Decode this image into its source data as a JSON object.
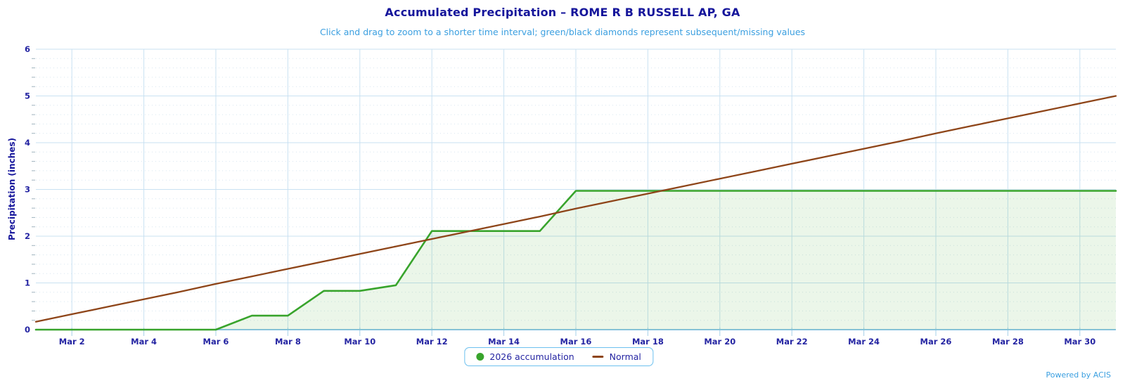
{
  "chart": {
    "title": "Accumulated Precipitation – ROME R B RUSSELL AP, GA",
    "subtitle": "Click and drag to zoom to a shorter time interval; green/black diamonds represent subsequent/missing values",
    "ylabel": "Precipitation (inches)",
    "credits": "Powered by ACIS"
  },
  "legend": {
    "items": [
      {
        "label": "2026 accumulation",
        "marker": "circle",
        "color": "#38a42c"
      },
      {
        "label": "Normal",
        "marker": "line",
        "color": "#8e4519"
      }
    ]
  },
  "colors": {
    "title": "#15159b",
    "subtitle": "#3b9fe0",
    "tick_label": "#2424a2",
    "grid_major": "#c9e1f2",
    "grid_minor": "#d7e6f0",
    "axis_line": "#8ac4e2",
    "x_tick": "#a5d0e8",
    "y_minor_tick": "#9fb2bd",
    "accumulation": "#38a42c",
    "accumulation_fill": "rgba(56,164,44,0.10)",
    "normal": "#8e4519",
    "legend_border": "#6cc0ef"
  },
  "chart_data": {
    "type": "area",
    "title": "Accumulated Precipitation – ROME R B RUSSELL AP, GA",
    "subtitle": "Click and drag to zoom to a shorter time interval; green/black diamonds represent subsequent/missing values",
    "xlabel": "",
    "ylabel": "Precipitation (inches)",
    "ylim": [
      0,
      6
    ],
    "y_major_step": 1,
    "y_minor_step": 0.2,
    "x_tick_every_days": 2,
    "grid": true,
    "legend_position": "bottom-center",
    "categories": [
      "Mar 1",
      "Mar 2",
      "Mar 3",
      "Mar 4",
      "Mar 5",
      "Mar 6",
      "Mar 7",
      "Mar 8",
      "Mar 9",
      "Mar 10",
      "Mar 11",
      "Mar 12",
      "Mar 13",
      "Mar 14",
      "Mar 15",
      "Mar 16",
      "Mar 17",
      "Mar 18",
      "Mar 19",
      "Mar 20",
      "Mar 21",
      "Mar 22",
      "Mar 23",
      "Mar 24",
      "Mar 25",
      "Mar 26",
      "Mar 27",
      "Mar 28",
      "Mar 29",
      "Mar 30",
      "Mar 31"
    ],
    "series": [
      {
        "name": "2026 accumulation",
        "type": "area",
        "color": "#38a42c",
        "values": [
          0,
          0,
          0,
          0,
          0,
          0,
          0.3,
          0.3,
          0.83,
          0.83,
          0.95,
          2.11,
          2.11,
          2.11,
          2.11,
          2.97,
          2.97,
          2.97,
          2.97,
          2.97,
          2.97,
          2.97,
          2.97,
          2.97,
          2.97,
          2.97,
          2.97,
          2.97,
          2.97,
          2.97,
          2.97
        ]
      },
      {
        "name": "Normal",
        "type": "line",
        "color": "#8e4519",
        "values": [
          0.17,
          0.33,
          0.49,
          0.65,
          0.81,
          0.98,
          1.14,
          1.3,
          1.46,
          1.62,
          1.78,
          1.94,
          2.1,
          2.26,
          2.42,
          2.59,
          2.75,
          2.91,
          3.07,
          3.23,
          3.39,
          3.55,
          3.71,
          3.87,
          4.03,
          4.2,
          4.36,
          4.52,
          4.68,
          4.84,
          5.0
        ]
      }
    ]
  }
}
